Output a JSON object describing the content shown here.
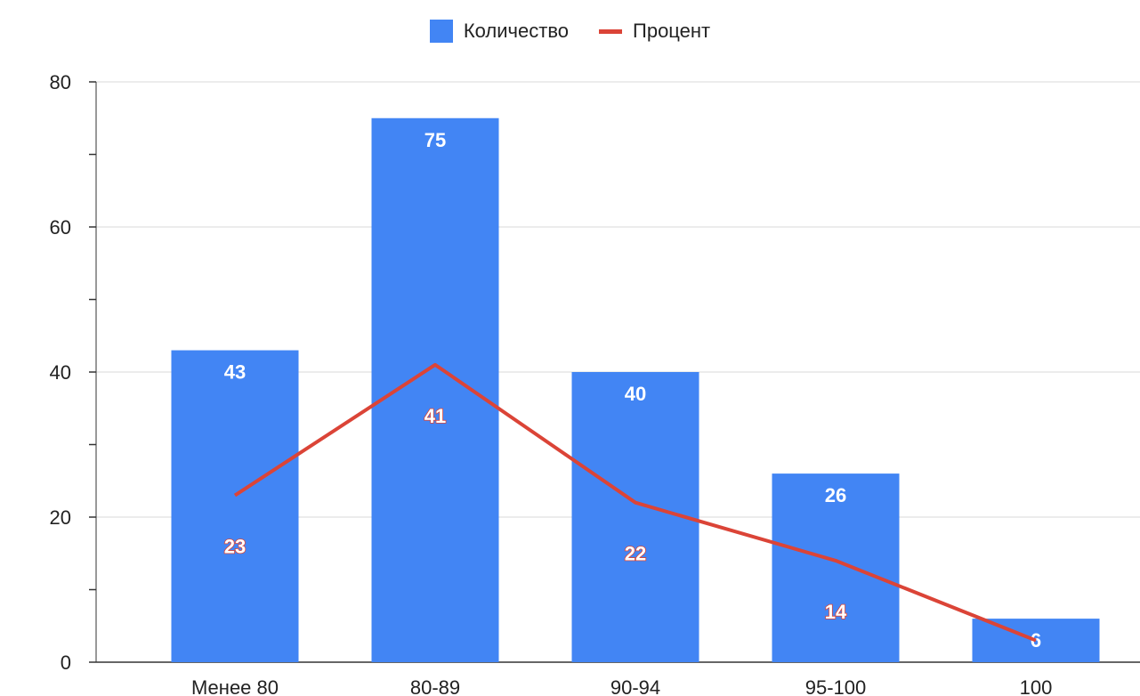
{
  "chart_data": {
    "type": "bar",
    "categories": [
      "Менее 80",
      "80-89",
      "90-94",
      "95-100",
      "100"
    ],
    "series": [
      {
        "name": "Количество",
        "type": "bar",
        "color": "#4285f4",
        "values": [
          43,
          75,
          40,
          26,
          6
        ]
      },
      {
        "name": "Процент",
        "type": "line",
        "color": "#db4437",
        "values": [
          23,
          41,
          22,
          14,
          3
        ]
      }
    ],
    "y_ticks": [
      "0",
      "20",
      "40",
      "60",
      "80"
    ],
    "ylim": [
      0,
      80
    ],
    "grid": true,
    "legend_position": "top-center",
    "title": "",
    "xlabel": "",
    "ylabel": ""
  }
}
